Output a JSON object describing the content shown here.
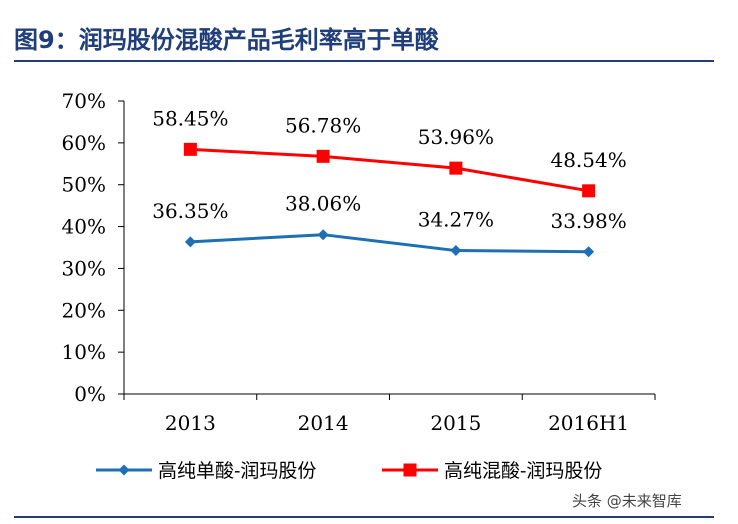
{
  "figure": {
    "title": "图9：润玛股份混酸产品毛利率高于单酸",
    "watermark": "头条 @未来智库"
  },
  "chart_data": {
    "type": "line",
    "title": "图9：润玛股份混酸产品毛利率高于单酸",
    "categories": [
      "2013",
      "2014",
      "2015",
      "2016H1"
    ],
    "ylim": [
      0,
      70
    ],
    "yticks": [
      0,
      10,
      20,
      30,
      40,
      50,
      60,
      70
    ],
    "ytick_labels": [
      "0%",
      "10%",
      "20%",
      "30%",
      "40%",
      "50%",
      "60%",
      "70%"
    ],
    "grid": false,
    "legend_position": "bottom",
    "series": [
      {
        "name": "高纯单酸-润玛股份",
        "color": "#1f6fb4",
        "marker": "diamond",
        "values": [
          36.35,
          38.06,
          34.27,
          33.98
        ],
        "labels": [
          "36.35%",
          "38.06%",
          "34.27%",
          "33.98%"
        ]
      },
      {
        "name": "高纯混酸-润玛股份",
        "color": "#ff0000",
        "marker": "square",
        "values": [
          58.45,
          56.78,
          53.96,
          48.54
        ],
        "labels": [
          "58.45%",
          "56.78%",
          "53.96%",
          "48.54%"
        ]
      }
    ]
  }
}
